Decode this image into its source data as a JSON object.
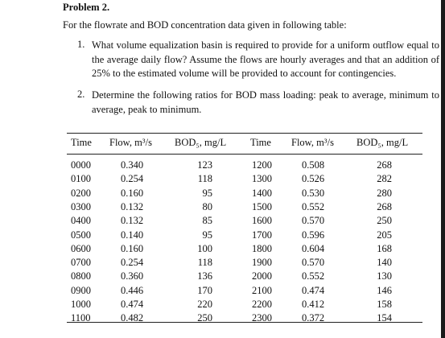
{
  "title": "Problem 2.",
  "intro": "For the flowrate and BOD concentration data given in following table:",
  "questions": [
    {
      "number": "1.",
      "text": "What volume equalization basin is required to provide for a uniform outflow equal to the average daily flow? Assume the flows are hourly averages and that an addition of 25% to the estimated volume will be provided to account for contingencies."
    },
    {
      "number": "2.",
      "text": "Determine the following ratios for BOD mass loading: peak to average, minimum to average, peak to minimum."
    }
  ],
  "table": {
    "header": [
      "Time",
      "Flow, m³/s",
      "BOD₅, mg/L",
      "Time",
      "Flow, m³/s",
      "BOD₅, mg/L"
    ],
    "rows": [
      [
        "0000",
        "0.340",
        "123",
        "1200",
        "0.508",
        "268"
      ],
      [
        "0100",
        "0.254",
        "118",
        "1300",
        "0.526",
        "282"
      ],
      [
        "0200",
        "0.160",
        "95",
        "1400",
        "0.530",
        "280"
      ],
      [
        "0300",
        "0.132",
        "80",
        "1500",
        "0.552",
        "268"
      ],
      [
        "0400",
        "0.132",
        "85",
        "1600",
        "0.570",
        "250"
      ],
      [
        "0500",
        "0.140",
        "95",
        "1700",
        "0.596",
        "205"
      ],
      [
        "0600",
        "0.160",
        "100",
        "1800",
        "0.604",
        "168"
      ],
      [
        "0700",
        "0.254",
        "118",
        "1900",
        "0.570",
        "140"
      ],
      [
        "0800",
        "0.360",
        "136",
        "2000",
        "0.552",
        "130"
      ],
      [
        "0900",
        "0.446",
        "170",
        "2100",
        "0.474",
        "146"
      ],
      [
        "1000",
        "0.474",
        "220",
        "2200",
        "0.412",
        "158"
      ],
      [
        "1100",
        "0.482",
        "250",
        "2300",
        "0.372",
        "154"
      ]
    ]
  }
}
